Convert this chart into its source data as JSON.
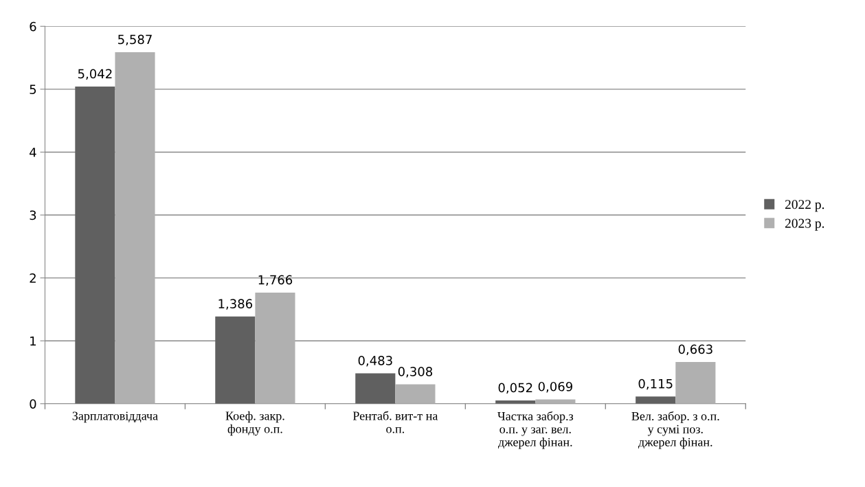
{
  "chart_data": {
    "type": "bar",
    "categories": [
      "Зарплатовіддача",
      "Коеф. закр.\nфонду о.п.",
      "Рентаб. вит-т на\nо.п.",
      "Частка забор.з\nо.п. у заг. вел.\nджерел фінан.",
      "Вел. забор. з о.п.\nу сумі поз.\nджерел фінан."
    ],
    "series": [
      {
        "name": "2022 р.",
        "color": "#606060",
        "values": [
          5.042,
          1.386,
          0.483,
          0.052,
          0.115
        ],
        "value_labels": [
          "5,042",
          "1,386",
          "0,483",
          "0,052",
          "0,115"
        ]
      },
      {
        "name": "2023 р.",
        "color": "#b0b0b0",
        "values": [
          5.587,
          1.766,
          0.308,
          0.069,
          0.663
        ],
        "value_labels": [
          "5,587",
          "1,766",
          "0,308",
          "0,069",
          "0,663"
        ]
      }
    ],
    "ylim": [
      0,
      6
    ],
    "yticks": [
      0,
      1,
      2,
      3,
      4,
      5,
      6
    ],
    "grid": "y",
    "legend": "right"
  }
}
